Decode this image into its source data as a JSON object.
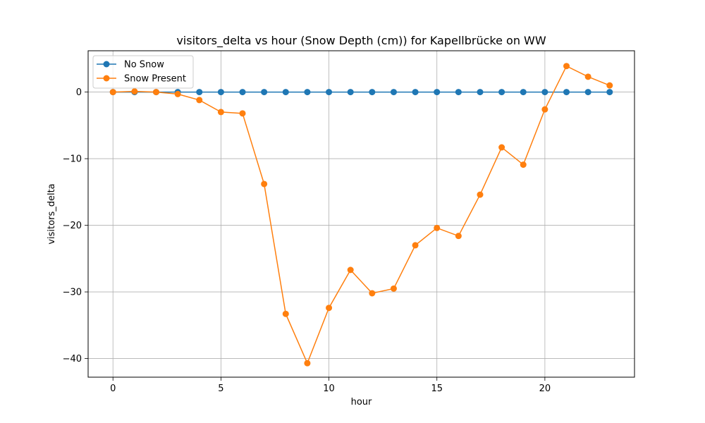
{
  "chart_data": {
    "type": "line",
    "title": "visitors_delta vs hour (Snow Depth (cm)) for Kapellbrücke on WW",
    "xlabel": "hour",
    "ylabel": "visitors_delta",
    "xlim": [
      -1.15,
      24.15
    ],
    "ylim": [
      -42.8,
      6.2
    ],
    "xticks": [
      0,
      5,
      10,
      15,
      20
    ],
    "yticks": [
      0,
      -10,
      -20,
      -30,
      -40
    ],
    "xtick_labels": [
      "0",
      "5",
      "10",
      "15",
      "20"
    ],
    "ytick_labels": [
      "0",
      "−10",
      "−20",
      "−30",
      "−40"
    ],
    "grid": true,
    "legend_position": "top-left",
    "x": [
      0,
      1,
      2,
      3,
      4,
      5,
      6,
      7,
      8,
      9,
      10,
      11,
      12,
      13,
      14,
      15,
      16,
      17,
      18,
      19,
      20,
      21,
      22,
      23
    ],
    "series": [
      {
        "name": "No Snow",
        "color": "#1f77b4",
        "values": [
          0,
          0,
          0,
          0,
          0,
          0,
          0,
          0,
          0,
          0,
          0,
          0,
          0,
          0,
          0,
          0,
          0,
          0,
          0,
          0,
          0,
          0,
          0,
          0
        ]
      },
      {
        "name": "Snow Present",
        "color": "#ff7f0e",
        "values": [
          0,
          0.1,
          0,
          -0.3,
          -1.2,
          -3.0,
          -3.2,
          -13.8,
          -33.3,
          -40.7,
          -32.4,
          -26.7,
          -30.2,
          -29.5,
          -23.0,
          -20.4,
          -21.6,
          -15.4,
          -8.3,
          -10.9,
          -2.6,
          3.9,
          2.3,
          1.0
        ]
      }
    ]
  }
}
